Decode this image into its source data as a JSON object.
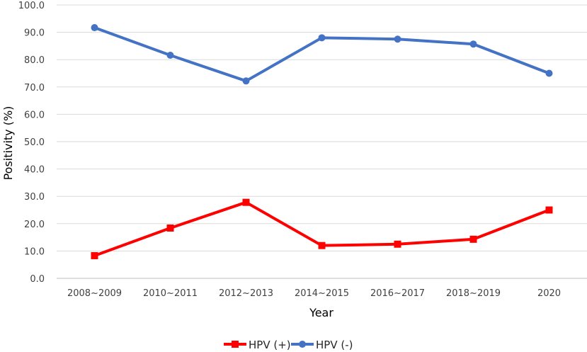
{
  "chart_data": {
    "type": "line",
    "title": "",
    "xlabel": "Year",
    "ylabel": "Positivity (%)",
    "categories": [
      "2008~2009",
      "2010~2011",
      "2012~2013",
      "2014~2015",
      "2016~2017",
      "2018~2019",
      "2020"
    ],
    "ylim": [
      0,
      100
    ],
    "ytick_labels": [
      "0.0",
      "10.0",
      "20.0",
      "30.0",
      "40.0",
      "50.0",
      "60.0",
      "70.0",
      "80.0",
      "90.0",
      "100.0"
    ],
    "grid": true,
    "legend_position": "bottom",
    "series": [
      {
        "name": "HPV (+)",
        "color": "#ff0000",
        "marker": "square",
        "values": [
          8.3,
          18.4,
          27.8,
          12.0,
          12.5,
          14.3,
          25.0
        ]
      },
      {
        "name": "HPV (-)",
        "color": "#4472c4",
        "marker": "circle",
        "values": [
          91.7,
          81.6,
          72.2,
          88.0,
          87.5,
          85.7,
          75.0
        ]
      }
    ]
  }
}
